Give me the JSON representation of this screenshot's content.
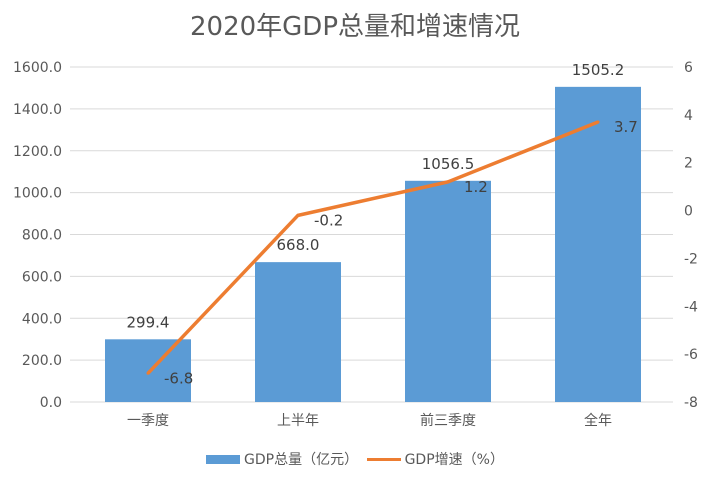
{
  "chart_data": {
    "type": "bar+line",
    "title": "2020年GDP总量和增速情况",
    "categories": [
      "一季度",
      "上半年",
      "前三季度",
      "全年"
    ],
    "series": [
      {
        "name": "GDP总量（亿元）",
        "type": "bar",
        "axis": "left",
        "values": [
          299.4,
          668.0,
          1056.5,
          1505.2
        ],
        "labels": [
          "299.4",
          "668.0",
          "1056.5",
          "1505.2"
        ],
        "color": "#5B9BD5"
      },
      {
        "name": "GDP增速（%）",
        "type": "line",
        "axis": "right",
        "values": [
          -6.8,
          -0.2,
          1.2,
          3.7
        ],
        "labels": [
          "-6.8",
          "-0.2",
          "1.2",
          "3.7"
        ],
        "color": "#ED7D31"
      }
    ],
    "y_left": {
      "range": [
        0,
        1600
      ],
      "ticks": [
        "0.0",
        "200.0",
        "400.0",
        "600.0",
        "800.0",
        "1000.0",
        "1200.0",
        "1400.0",
        "1600.0"
      ]
    },
    "y_right": {
      "range": [
        -8,
        6
      ],
      "ticks": [
        "-8",
        "-6",
        "-4",
        "-2",
        "0",
        "2",
        "4",
        "6"
      ]
    },
    "grid": true,
    "legend": "bottom"
  }
}
